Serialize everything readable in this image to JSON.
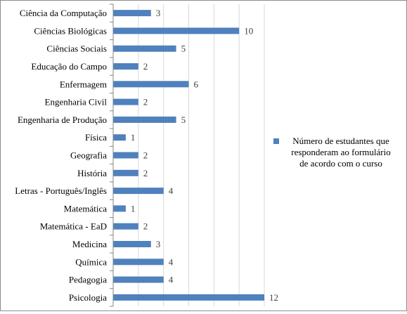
{
  "chart_data": {
    "type": "bar",
    "orientation": "horizontal",
    "categories": [
      "Ciência da Computação",
      "Ciências Biológicas",
      "Ciências Sociais",
      "Educação do Campo",
      "Enfermagem",
      "Engenharia Civil",
      "Engenharia de Produção",
      "Física",
      "Geografia",
      "História",
      "Letras - Português/Inglês",
      "Matemática",
      "Matemática - EaD",
      "Medicina",
      "Química",
      "Pedagogia",
      "Psicologia"
    ],
    "series": [
      {
        "name": "Número de estudantes que responderam ao formulário de acordo com o curso",
        "values": [
          3,
          10,
          5,
          2,
          6,
          2,
          5,
          1,
          2,
          2,
          4,
          1,
          2,
          3,
          4,
          4,
          12
        ],
        "color": "#4f81bd"
      }
    ],
    "legend_lines": [
      "Número de estudantes que",
      "responderam ao formulário",
      "de acordo com o curso"
    ],
    "data_labels": true,
    "xlim": [
      0,
      12
    ],
    "grid": true,
    "legend_position": "right",
    "title": "",
    "xlabel": "",
    "ylabel": ""
  }
}
